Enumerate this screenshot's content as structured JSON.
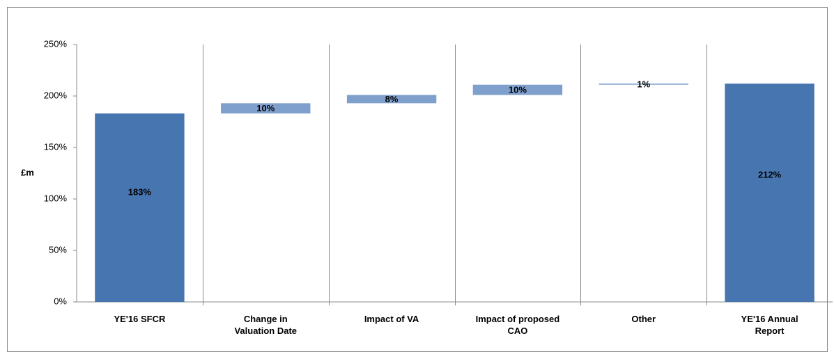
{
  "chart_data": {
    "type": "waterfall",
    "y_label": "£m",
    "categories": [
      "YE'16 SFCR",
      "Change in Valuation Date",
      "Impact of VA",
      "Impact of proposed CAO",
      "Other",
      "YE'16 Annual Report"
    ],
    "values": [
      183,
      10,
      8,
      10,
      1,
      212
    ],
    "value_labels": [
      "183%",
      "10%",
      "8%",
      "10%",
      "1%",
      "212%"
    ],
    "measure": [
      "absolute",
      "relative",
      "relative",
      "relative",
      "relative",
      "total"
    ],
    "colors": [
      "#4775b0",
      "#7f9fcc",
      "#7f9fcc",
      "#7f9fcc",
      "#7f9fcc",
      "#4775b0"
    ],
    "ylim": [
      0,
      250
    ],
    "yticks": [
      {
        "value": 0,
        "label": "0%"
      },
      {
        "value": 50,
        "label": "50%"
      },
      {
        "value": 100,
        "label": "100%"
      },
      {
        "value": 150,
        "label": "150%"
      },
      {
        "value": 200,
        "label": "200%"
      },
      {
        "value": 250,
        "label": "250%"
      }
    ]
  }
}
